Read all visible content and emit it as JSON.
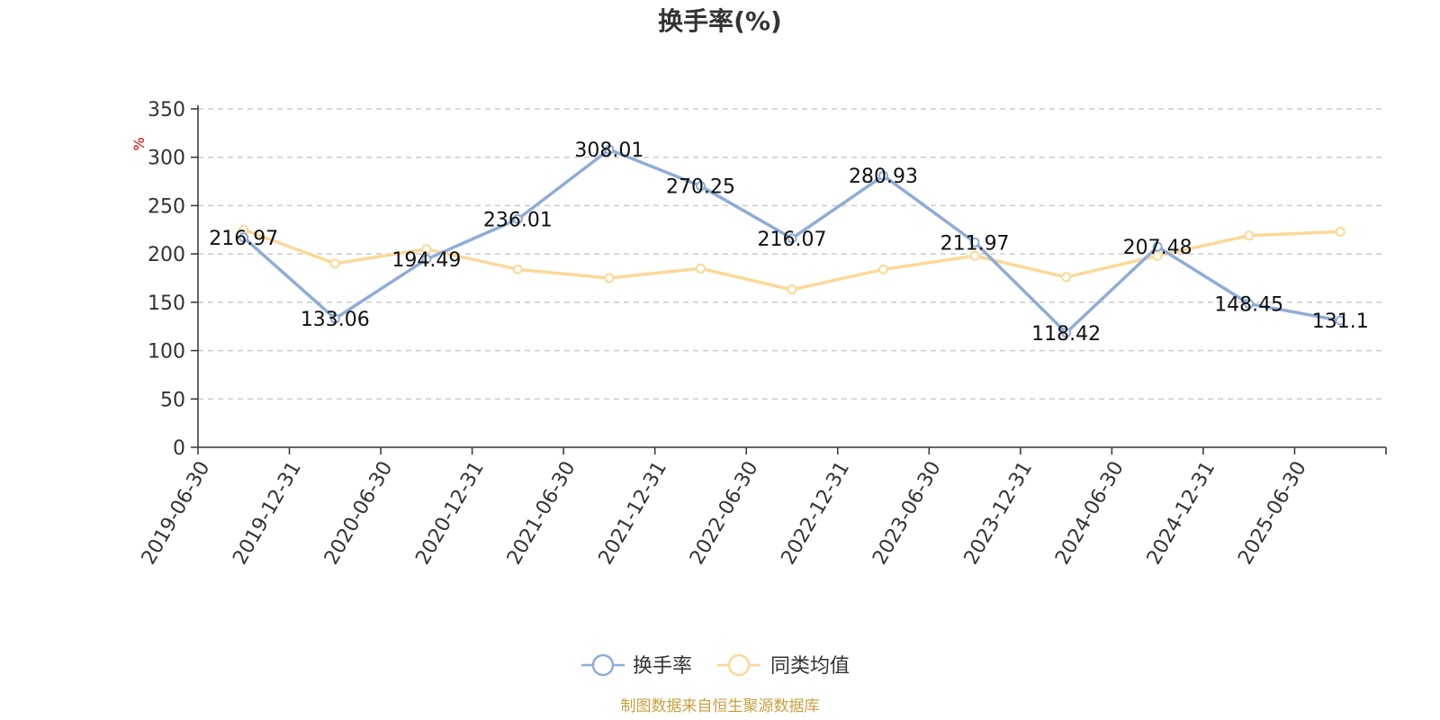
{
  "colors": {
    "series_1": "#8eacd8",
    "series_2": "#fcd898",
    "axis": "#333333",
    "grid": "#cccccc",
    "unit": "#d20000",
    "source": "#c8a040"
  },
  "chart_data": {
    "type": "line",
    "title": "换手率(%)",
    "ylabel": "%",
    "xlabel": "",
    "ylim": [
      0,
      350
    ],
    "yticks": [
      0,
      50,
      100,
      150,
      200,
      250,
      300,
      350
    ],
    "grid": true,
    "legend_position": "bottom-center",
    "categories": [
      "2019-06-30",
      "2019-12-31",
      "2020-06-30",
      "2020-12-31",
      "2021-06-30",
      "2021-12-31",
      "2022-06-30",
      "2022-12-31",
      "2023-06-30",
      "2023-12-31",
      "2024-06-30",
      "2024-12-31",
      "2025-06-30"
    ],
    "series": [
      {
        "name": "换手率",
        "values": [
          216.97,
          133.06,
          194.49,
          236.01,
          308.01,
          270.25,
          216.07,
          280.93,
          211.97,
          118.42,
          207.48,
          148.45,
          131.1
        ],
        "labels": [
          "216.97",
          "133.06",
          "194.49",
          "236.01",
          "308.01",
          "270.25",
          "216.07",
          "280.93",
          "211.97",
          "118.42",
          "207.48",
          "148.45",
          "131.1"
        ]
      },
      {
        "name": "同类均值",
        "values": [
          225,
          190,
          205,
          184,
          175,
          185,
          163,
          184,
          198,
          176,
          198,
          219,
          223
        ]
      }
    ]
  },
  "source_text": "制图数据来自恒生聚源数据库"
}
